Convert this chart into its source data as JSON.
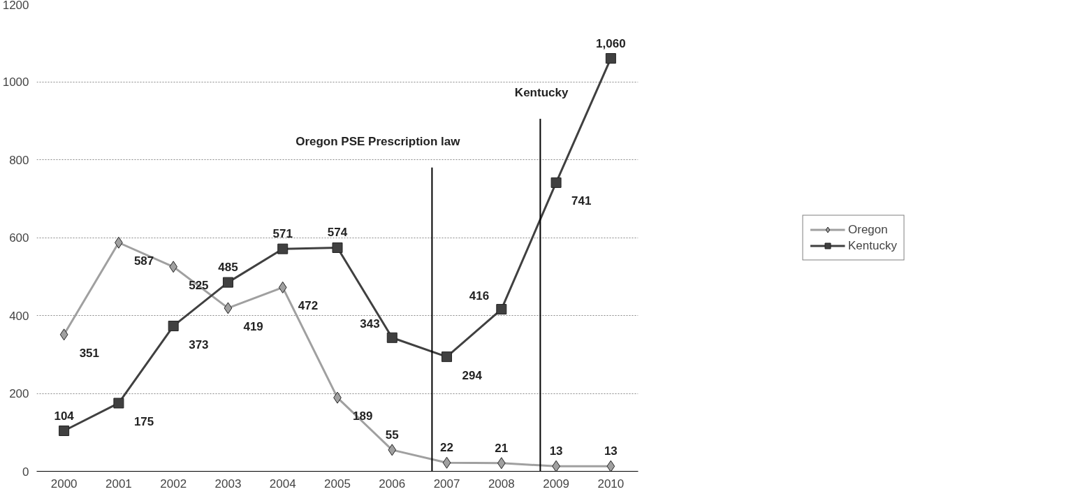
{
  "chart_data": {
    "type": "line",
    "x": [
      2000,
      2001,
      2002,
      2003,
      2004,
      2005,
      2006,
      2007,
      2008,
      2009,
      2010
    ],
    "xlim": [
      1999.5,
      2010.5
    ],
    "xticks": [
      2000,
      2001,
      2002,
      2003,
      2004,
      2005,
      2006,
      2007,
      2008,
      2009,
      2010
    ],
    "ylim": [
      0,
      1200
    ],
    "yticks": [
      0,
      200,
      400,
      600,
      800,
      1000,
      1200
    ],
    "grid": "y",
    "legend": "right",
    "series": [
      {
        "name": "Oregon",
        "color": "#a0a0a0",
        "marker": "diamond",
        "values": [
          351,
          587,
          525,
          419,
          472,
          189,
          55,
          22,
          21,
          13,
          13
        ],
        "value_labels": [
          "351",
          "587",
          "525",
          "419",
          "472",
          "189",
          "55",
          "22",
          "21",
          "13",
          "13"
        ]
      },
      {
        "name": "Kentucky",
        "color": "#404040",
        "marker": "square",
        "values": [
          104,
          175,
          373,
          485,
          571,
          574,
          343,
          294,
          416,
          741,
          1060
        ],
        "value_labels": [
          "104",
          "175",
          "373",
          "485",
          "571",
          "574",
          "343",
          "294",
          "416",
          "741",
          "1,060"
        ]
      }
    ],
    "ref_lines": [
      {
        "axis": "x",
        "value": 2006.73,
        "label": "Oregon PSE Prescription law",
        "color": "#000000"
      },
      {
        "axis": "x",
        "value": 2008.71,
        "label": "Kentucky",
        "color": "#000000"
      }
    ]
  }
}
